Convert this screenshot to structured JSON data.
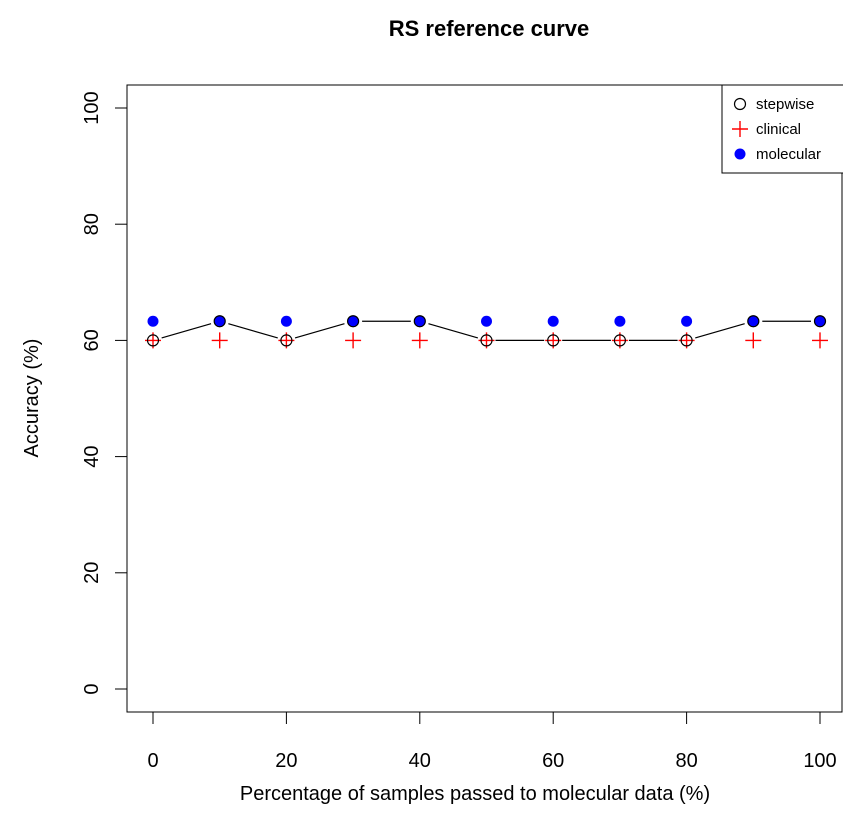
{
  "chart_data": {
    "type": "scatter",
    "title": "RS reference curve",
    "xlabel": "Percentage of samples passed to molecular data (%)",
    "ylabel": "Accuracy (%)",
    "xlim": [
      0,
      100
    ],
    "ylim": [
      0,
      100
    ],
    "x_ticks": [
      "0",
      "20",
      "40",
      "60",
      "80",
      "100"
    ],
    "y_ticks": [
      "0",
      "20",
      "40",
      "60",
      "80",
      "100"
    ],
    "x": [
      0,
      10,
      20,
      30,
      40,
      50,
      60,
      70,
      80,
      90,
      100
    ],
    "grid": false,
    "legend_position": "top-right",
    "series": [
      {
        "name": "stepwise",
        "marker": "open-circle",
        "color": "#000000",
        "line": true,
        "values": [
          60,
          63.3,
          60,
          63.3,
          63.3,
          60,
          60,
          60,
          60,
          63.3,
          63.3
        ]
      },
      {
        "name": "clinical",
        "marker": "plus",
        "color": "#ff0000",
        "line": false,
        "values": [
          60,
          60,
          60,
          60,
          60,
          60,
          60,
          60,
          60,
          60,
          60
        ]
      },
      {
        "name": "molecular",
        "marker": "filled-circle",
        "color": "#0000ff",
        "line": false,
        "values": [
          63.3,
          63.3,
          63.3,
          63.3,
          63.3,
          63.3,
          63.3,
          63.3,
          63.3,
          63.3,
          63.3
        ]
      }
    ]
  }
}
